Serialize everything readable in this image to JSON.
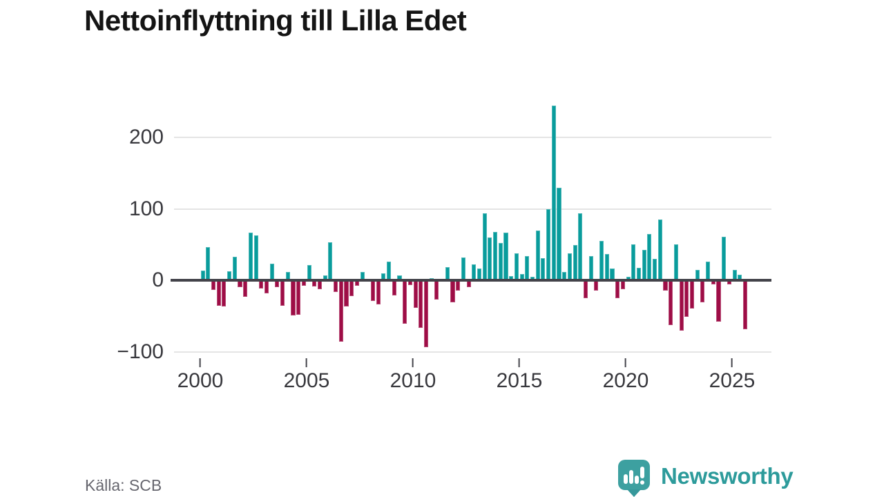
{
  "title": "Nettoinflyttning till Lilla Edet",
  "source": "Källa: SCB",
  "branding": {
    "logo_text": "Newsworthy",
    "logo_icon": "bar-chart-speech-bubble-icon"
  },
  "colors": {
    "positive_bar": "#099c9c",
    "negative_bar": "#9e0d46",
    "brand_accent": "#3da0a0",
    "brand_accent_dark": "#36989b",
    "brand_text": "#2d9b9b",
    "zero_line": "#43434a",
    "gridline": "#e4e4e4",
    "axis_text": "#38383d",
    "title_text": "#141414",
    "source_text": "#66666e"
  },
  "chart_data": {
    "type": "bar",
    "title": "Nettoinflyttning till Lilla Edet",
    "frequency": "quarterly",
    "start_period": "2000 Q1",
    "end_period": "2025 Q3",
    "x_tick_labels": [
      "2000",
      "2005",
      "2010",
      "2015",
      "2020",
      "2025"
    ],
    "y_tick_labels": [
      "200",
      "100",
      "0",
      "−100"
    ],
    "y_tick_values": [
      200,
      100,
      0,
      -100
    ],
    "ylim": [
      -110,
      260
    ],
    "grid": true,
    "legend": false,
    "series": [
      {
        "name": "Nettoinflyttning",
        "values": [
          14,
          47,
          -13,
          -35,
          -36,
          13,
          33,
          -9,
          -23,
          67,
          63,
          -11,
          -18,
          24,
          -9,
          -35,
          12,
          -49,
          -48,
          -7,
          22,
          -8,
          -12,
          7,
          54,
          -16,
          -85,
          -36,
          -22,
          -7,
          12,
          2,
          -28,
          -33,
          10,
          27,
          -21,
          7,
          -60,
          -6,
          -38,
          -66,
          -93,
          3,
          -27,
          2,
          19,
          -30,
          -14,
          32,
          -9,
          23,
          17,
          94,
          60,
          68,
          53,
          67,
          6,
          38,
          9,
          34,
          5,
          70,
          31,
          100,
          245,
          130,
          12,
          38,
          50,
          94,
          -25,
          34,
          -14,
          56,
          37,
          17,
          -25,
          -12,
          5,
          51,
          18,
          43,
          65,
          30,
          86,
          -14,
          -62,
          51,
          -70,
          -51,
          -39,
          15,
          -30,
          27,
          -5,
          -57,
          61,
          -5,
          15,
          8,
          -68
        ]
      }
    ]
  }
}
